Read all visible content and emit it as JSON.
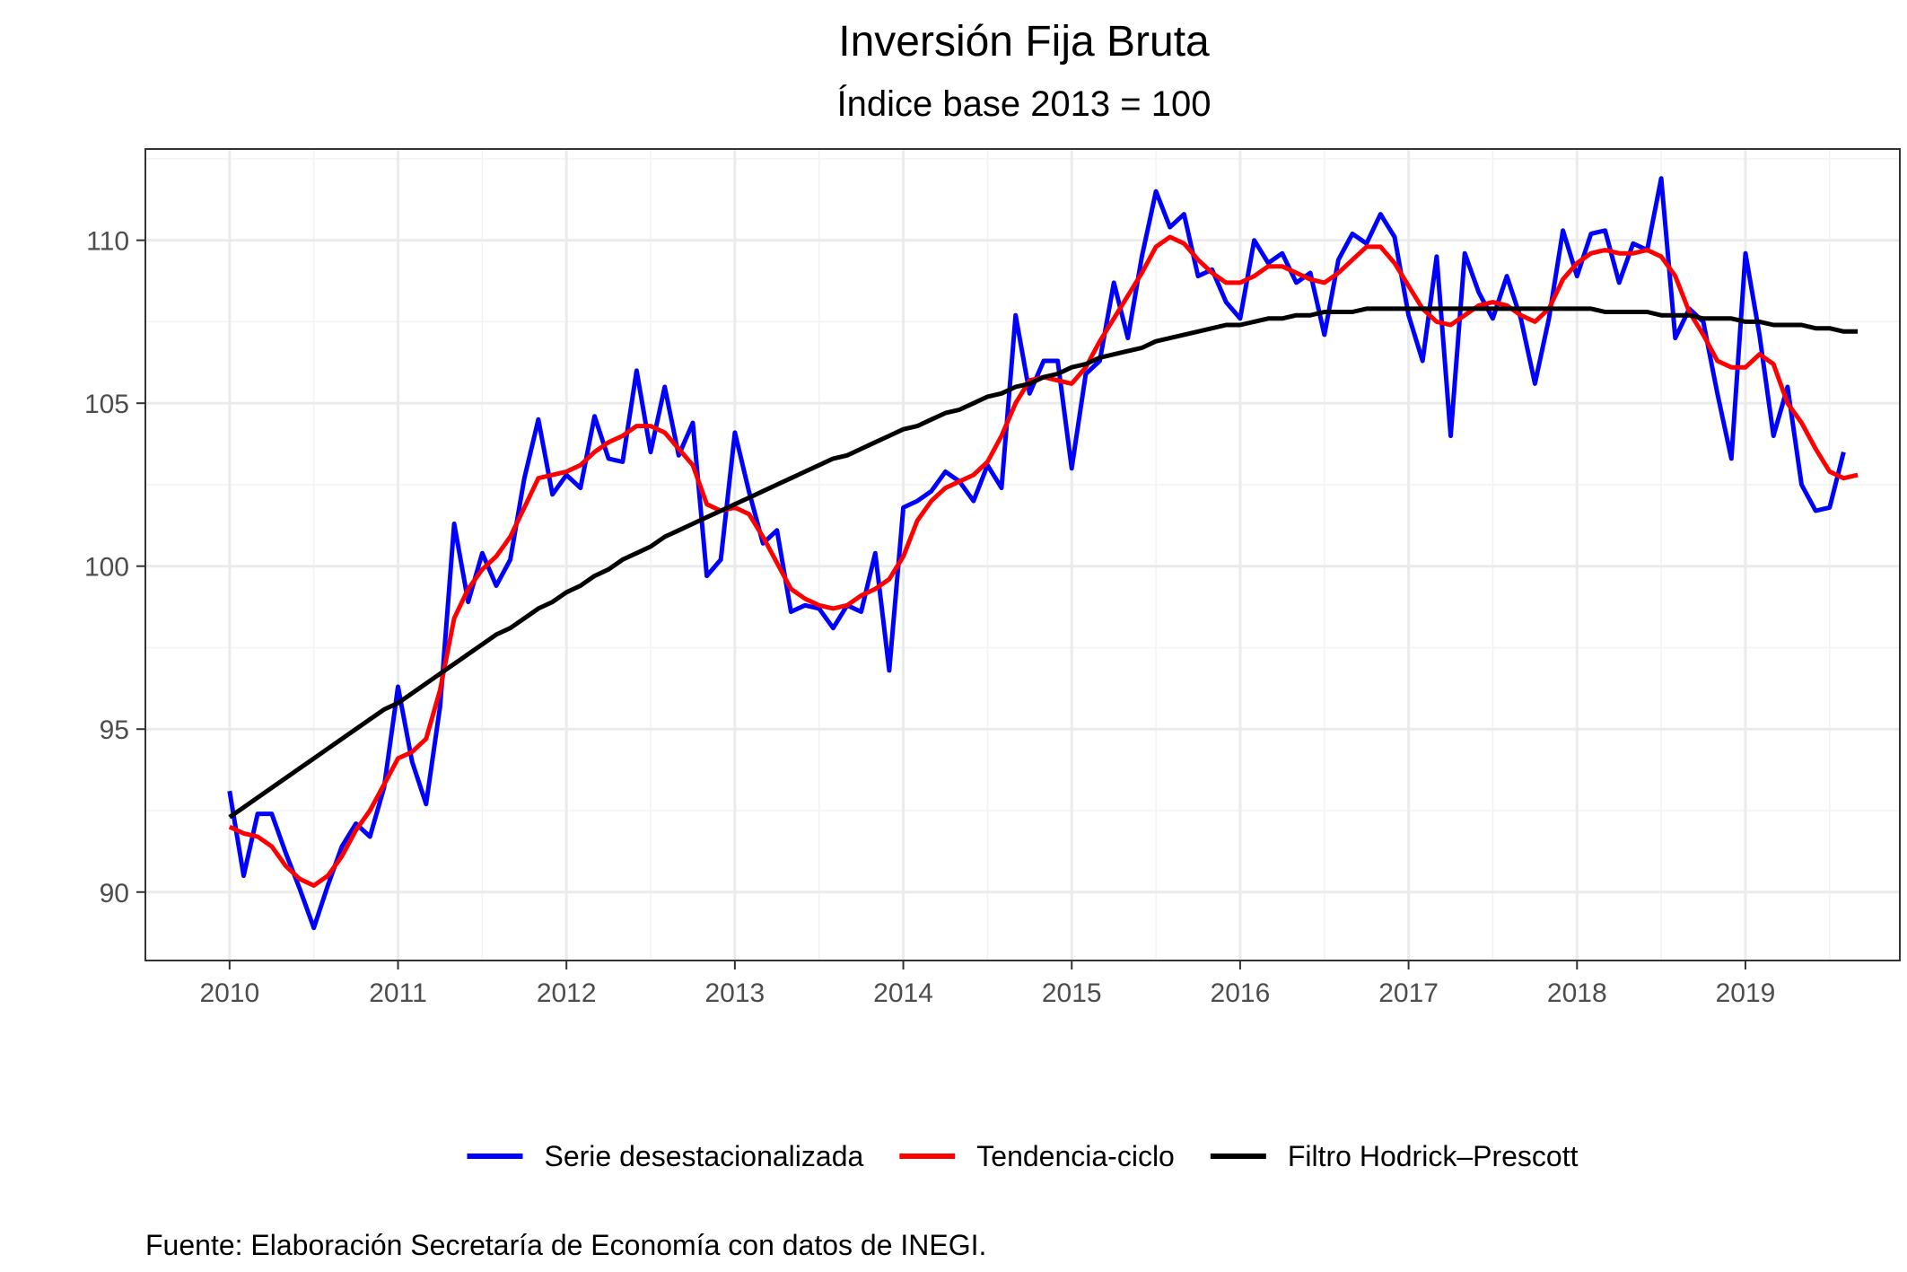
{
  "chart_data": {
    "type": "line",
    "title": "Inversión Fija Bruta",
    "subtitle": "Índice base 2013 = 100",
    "caption": "Fuente: Elaboración Secretaría de Economía con datos de INEGI.",
    "xlabel": "",
    "ylabel": "",
    "x_ticks": [
      "2010",
      "2011",
      "2012",
      "2013",
      "2014",
      "2015",
      "2016",
      "2017",
      "2018",
      "2019"
    ],
    "y_ticks": [
      90,
      95,
      100,
      105,
      110
    ],
    "xlim": [
      "2009-07",
      "2019-12"
    ],
    "ylim": [
      87.9,
      112.8
    ],
    "grid": true,
    "legend_position": "bottom",
    "start": "2010-01",
    "series": [
      {
        "name": "Serie desestacionalizada",
        "color": "#0000ff",
        "values": [
          93.1,
          90.5,
          92.4,
          92.4,
          91.2,
          90.1,
          88.9,
          90.2,
          91.4,
          92.1,
          91.7,
          93.2,
          96.3,
          94.0,
          92.7,
          95.7,
          101.3,
          98.9,
          100.4,
          99.4,
          100.2,
          102.7,
          104.5,
          102.2,
          102.8,
          102.4,
          104.6,
          103.3,
          103.2,
          106.0,
          103.5,
          105.5,
          103.4,
          104.4,
          99.7,
          100.2,
          104.1,
          102.3,
          100.7,
          101.1,
          98.6,
          98.8,
          98.7,
          98.1,
          98.8,
          98.6,
          100.4,
          96.8,
          101.8,
          102.0,
          102.3,
          102.9,
          102.6,
          102.0,
          103.1,
          102.4,
          107.7,
          105.3,
          106.3,
          106.3,
          103.0,
          105.9,
          106.3,
          108.7,
          107.0,
          109.5,
          111.5,
          110.4,
          110.8,
          108.9,
          109.1,
          108.1,
          107.6,
          110.0,
          109.3,
          109.6,
          108.7,
          109.0,
          107.1,
          109.4,
          110.2,
          109.9,
          110.8,
          110.1,
          107.7,
          106.3,
          109.5,
          104.0,
          109.6,
          108.4,
          107.6,
          108.9,
          107.6,
          105.6,
          107.6,
          110.3,
          108.9,
          110.2,
          110.3,
          108.7,
          109.9,
          109.7,
          111.9,
          107.0,
          107.9,
          107.5,
          105.3,
          103.3,
          109.6,
          107.1,
          104.0,
          105.5,
          102.5,
          101.7,
          101.8,
          103.5
        ]
      },
      {
        "name": "Tendencia-ciclo",
        "color": "#ff0000",
        "values": [
          92.0,
          91.8,
          91.7,
          91.4,
          90.8,
          90.4,
          90.2,
          90.5,
          91.1,
          91.9,
          92.5,
          93.3,
          94.1,
          94.3,
          94.7,
          96.2,
          98.4,
          99.3,
          99.9,
          100.3,
          100.9,
          101.8,
          102.7,
          102.8,
          102.9,
          103.1,
          103.5,
          103.8,
          104.0,
          104.3,
          104.3,
          104.1,
          103.6,
          103.1,
          101.9,
          101.7,
          101.8,
          101.6,
          100.9,
          100.1,
          99.3,
          99.0,
          98.8,
          98.7,
          98.8,
          99.1,
          99.3,
          99.6,
          100.3,
          101.4,
          102.0,
          102.4,
          102.6,
          102.8,
          103.2,
          104.0,
          105.0,
          105.7,
          105.8,
          105.7,
          105.6,
          106.1,
          106.9,
          107.6,
          108.3,
          109.0,
          109.8,
          110.1,
          109.9,
          109.4,
          109.0,
          108.7,
          108.7,
          108.9,
          109.2,
          109.2,
          109.0,
          108.8,
          108.7,
          109.0,
          109.4,
          109.8,
          109.8,
          109.3,
          108.6,
          107.9,
          107.5,
          107.4,
          107.7,
          108.0,
          108.1,
          108.0,
          107.7,
          107.5,
          107.9,
          108.8,
          109.3,
          109.6,
          109.7,
          109.6,
          109.6,
          109.7,
          109.5,
          108.9,
          107.8,
          107.1,
          106.3,
          106.1,
          106.1,
          106.5,
          106.2,
          105.0,
          104.4,
          103.6,
          102.9,
          102.7,
          102.8
        ]
      },
      {
        "name": "Filtro Hodrick–Prescott",
        "color": "#000000",
        "values": [
          92.3,
          92.6,
          92.9,
          93.2,
          93.5,
          93.8,
          94.1,
          94.4,
          94.7,
          95.0,
          95.3,
          95.6,
          95.8,
          96.1,
          96.4,
          96.7,
          97.0,
          97.3,
          97.6,
          97.9,
          98.1,
          98.4,
          98.7,
          98.9,
          99.2,
          99.4,
          99.7,
          99.9,
          100.2,
          100.4,
          100.6,
          100.9,
          101.1,
          101.3,
          101.5,
          101.7,
          101.9,
          102.1,
          102.3,
          102.5,
          102.7,
          102.9,
          103.1,
          103.3,
          103.4,
          103.6,
          103.8,
          104.0,
          104.2,
          104.3,
          104.5,
          104.7,
          104.8,
          105.0,
          105.2,
          105.3,
          105.5,
          105.6,
          105.8,
          105.9,
          106.1,
          106.2,
          106.4,
          106.5,
          106.6,
          106.7,
          106.9,
          107.0,
          107.1,
          107.2,
          107.3,
          107.4,
          107.4,
          107.5,
          107.6,
          107.6,
          107.7,
          107.7,
          107.8,
          107.8,
          107.8,
          107.9,
          107.9,
          107.9,
          107.9,
          107.9,
          107.9,
          107.9,
          107.9,
          107.9,
          107.9,
          107.9,
          107.9,
          107.9,
          107.9,
          107.9,
          107.9,
          107.9,
          107.8,
          107.8,
          107.8,
          107.8,
          107.7,
          107.7,
          107.7,
          107.6,
          107.6,
          107.6,
          107.5,
          107.5,
          107.4,
          107.4,
          107.4,
          107.3,
          107.3,
          107.2,
          107.2
        ]
      }
    ]
  }
}
